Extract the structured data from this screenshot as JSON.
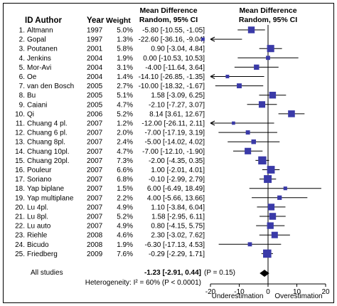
{
  "chart_data": {
    "type": "forest",
    "headers": {
      "id_author": "ID Author",
      "year": "Year",
      "weight": "Weight",
      "effect_line1": "Mean Difference",
      "effect_line2": "Random, 95% CI",
      "plot_line1": "Mean Difference",
      "plot_line2": "Random, 95% CI"
    },
    "studies": [
      {
        "id": "1.",
        "author": "Altmann",
        "year": "1997",
        "weight": "5.0%",
        "md": -5.8,
        "lo": -10.55,
        "hi": -1.05,
        "label": "-5.80 [-10.55, -1.05]"
      },
      {
        "id": "2.",
        "author": "Gopal",
        "year": "1997",
        "weight": "1.3%",
        "md": -22.6,
        "lo": -36.16,
        "hi": -9.04,
        "label": "-22.60 [-36.16, -9.04]"
      },
      {
        "id": "3.",
        "author": "Poutanen",
        "year": "2001",
        "weight": "5.8%",
        "md": 0.9,
        "lo": -3.04,
        "hi": 4.84,
        "label": "0.90 [-3.04, 4.84]"
      },
      {
        "id": "4.",
        "author": "Jenkins",
        "year": "2004",
        "weight": "1.9%",
        "md": 0.0,
        "lo": -10.53,
        "hi": 10.53,
        "label": "0.00 [-10.53, 10.53]"
      },
      {
        "id": "5.",
        "author": "Mor-Avi",
        "year": "2004",
        "weight": "3.1%",
        "md": -4.0,
        "lo": -11.64,
        "hi": 3.64,
        "label": "-4.00 [-11.64, 3.64]"
      },
      {
        "id": "6.",
        "author": "Oe",
        "year": "2004",
        "weight": "1.4%",
        "md": -14.1,
        "lo": -26.85,
        "hi": -1.35,
        "label": "-14.10 [-26.85, -1.35]"
      },
      {
        "id": "7.",
        "author": "van den Bosch",
        "year": "2005",
        "weight": "2.7%",
        "md": -10.0,
        "lo": -18.32,
        "hi": -1.67,
        "label": "-10.00 [-18.32, -1.67]"
      },
      {
        "id": "8.",
        "author": "Bu",
        "year": "2005",
        "weight": "5.1%",
        "md": 1.58,
        "lo": -3.09,
        "hi": 6.25,
        "label": "1.58 [-3.09, 6.25]"
      },
      {
        "id": "9.",
        "author": "Caiani",
        "year": "2005",
        "weight": "4.7%",
        "md": -2.1,
        "lo": -7.27,
        "hi": 3.07,
        "label": "-2.10 [-7.27, 3.07]"
      },
      {
        "id": "10.",
        "author": "Qi",
        "year": "2006",
        "weight": "5.2%",
        "md": 8.14,
        "lo": 3.61,
        "hi": 12.67,
        "label": "8.14 [3.61, 12.67]"
      },
      {
        "id": "11.",
        "author": "Chuang 4 pl.",
        "year": "2007",
        "weight": "1.2%",
        "md": -12.0,
        "lo": -26.11,
        "hi": 2.11,
        "label": "-12.00 [-26.11, 2.11]"
      },
      {
        "id": "12.",
        "author": "Chuang 6 pl.",
        "year": "2007",
        "weight": "2.0%",
        "md": -7.0,
        "lo": -17.19,
        "hi": 3.19,
        "label": "-7.00 [-17.19, 3.19]"
      },
      {
        "id": "13.",
        "author": "Chuang 8pl.",
        "year": "2007",
        "weight": "2.4%",
        "md": -5.0,
        "lo": -14.02,
        "hi": 4.02,
        "label": "-5.00 [-14.02, 4.02]"
      },
      {
        "id": "14.",
        "author": "Chuang 10pl.",
        "year": "2007",
        "weight": "4.7%",
        "md": -7.0,
        "lo": -12.1,
        "hi": -1.9,
        "label": "-7.00 [-12.10, -1.90]"
      },
      {
        "id": "15.",
        "author": "Chuang 20pl.",
        "year": "2007",
        "weight": "7.3%",
        "md": -2.0,
        "lo": -4.35,
        "hi": 0.35,
        "label": "-2.00 [-4.35, 0.35]"
      },
      {
        "id": "16.",
        "author": "Pouleur",
        "year": "2007",
        "weight": "6.6%",
        "md": 1.0,
        "lo": -2.01,
        "hi": 4.01,
        "label": "1.00 [-2.01, 4.01]"
      },
      {
        "id": "17.",
        "author": "Soriano",
        "year": "2007",
        "weight": "6.8%",
        "md": -0.1,
        "lo": -2.99,
        "hi": 2.79,
        "label": "-0.10 [-2.99, 2.79]"
      },
      {
        "id": "18.",
        "author": "Yap biplane",
        "year": "2007",
        "weight": "1.5%",
        "md": 6.0,
        "lo": -6.49,
        "hi": 18.49,
        "label": "6.00 [-6.49, 18.49]"
      },
      {
        "id": "19.",
        "author": "Yap multiplane",
        "year": "2007",
        "weight": "2.2%",
        "md": 4.0,
        "lo": -5.66,
        "hi": 13.66,
        "label": "4.00 [-5.66, 13.66]"
      },
      {
        "id": "20.",
        "author": "Lu 4pl.",
        "year": "2007",
        "weight": "4.9%",
        "md": 1.1,
        "lo": -3.84,
        "hi": 6.04,
        "label": "1.10 [-3.84, 6.04]"
      },
      {
        "id": "21.",
        "author": "Lu 8pl.",
        "year": "2007",
        "weight": "5.2%",
        "md": 1.58,
        "lo": -2.95,
        "hi": 6.11,
        "label": "1.58 [-2.95, 6.11]"
      },
      {
        "id": "22.",
        "author": "Lu auto",
        "year": "2007",
        "weight": "4.9%",
        "md": 0.8,
        "lo": -4.15,
        "hi": 5.75,
        "label": "0.80 [-4.15, 5.75]"
      },
      {
        "id": "23.",
        "author": "Riehle",
        "year": "2008",
        "weight": "4.6%",
        "md": 2.3,
        "lo": -3.02,
        "hi": 7.62,
        "label": "2.30 [-3.02, 7.62]"
      },
      {
        "id": "24.",
        "author": "Bicudo",
        "year": "2008",
        "weight": "1.9%",
        "md": -6.3,
        "lo": -17.13,
        "hi": 4.53,
        "label": "-6.30 [-17.13, 4.53]"
      },
      {
        "id": "25.",
        "author": "Friedberg",
        "year": "2009",
        "weight": "7.6%",
        "md": -0.29,
        "lo": -2.29,
        "hi": 1.71,
        "label": "-0.29 [-2.29, 1.71]"
      }
    ],
    "overall": {
      "label": "All studies",
      "md": -1.23,
      "lo": -2.91,
      "hi": 0.44,
      "ci_text": "-1.23 [-2.91, 0.44]",
      "p_text": "(P = 0.15)",
      "heterogeneity_text": "Heterogeneity: I² = 60% (P < 0.0001)"
    },
    "x_axis": {
      "xlim": [
        -20,
        20
      ],
      "ticks": [
        -20,
        -10,
        0,
        10,
        20
      ],
      "tick_labels": [
        "-20",
        "-10",
        "0",
        "10",
        "20"
      ],
      "left_label": "Underestimation",
      "right_label": "Overestimation"
    },
    "colors": {
      "marker": "#3a3aa8",
      "line": "#000000",
      "diamond": "#000000"
    }
  }
}
